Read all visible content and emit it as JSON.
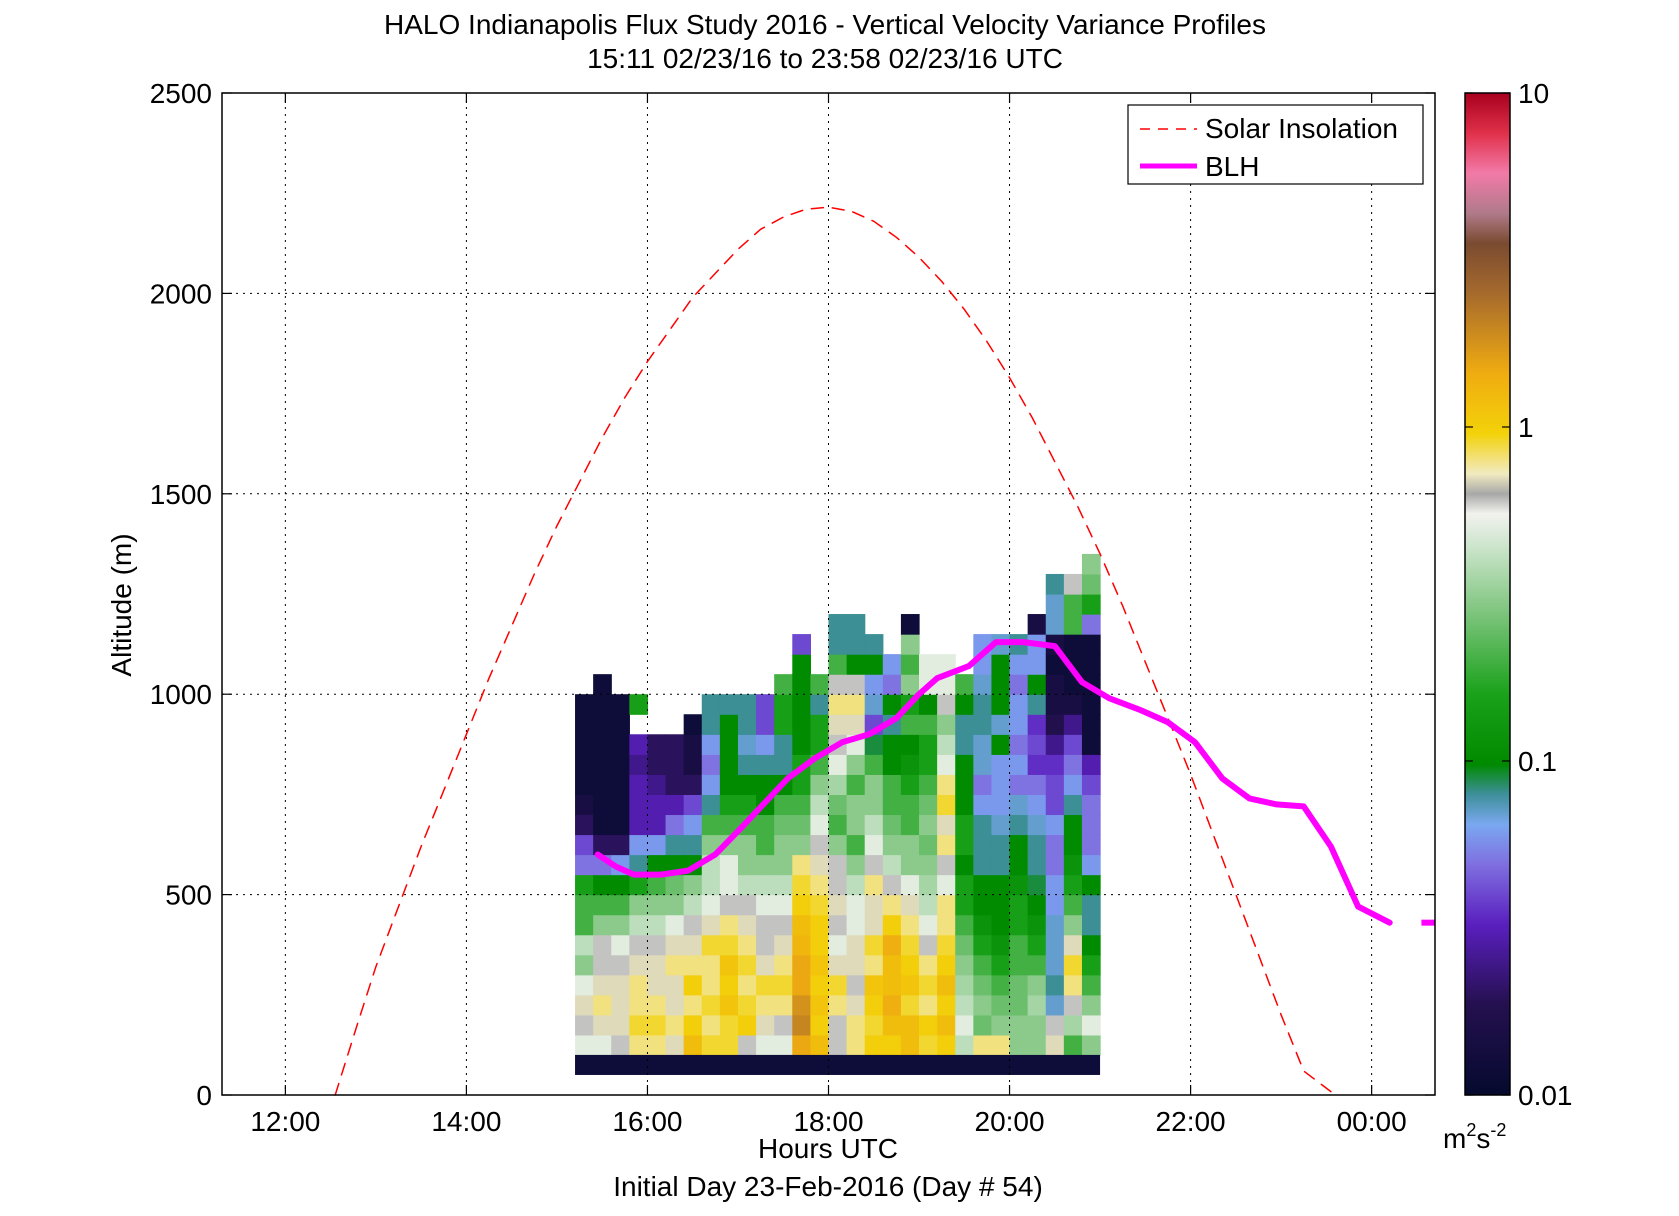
{
  "chart_data": {
    "type": "heatmap",
    "title": "HALO Indianapolis Flux Study 2016 - Vertical Velocity Variance Profiles",
    "subtitle": "15:11 02/23/16 to 23:58 02/23/16  UTC",
    "xlabel": "Hours UTC",
    "xlabel2": "Initial Day 23-Feb-2016 (Day # 54)",
    "ylabel": "Altitude (m)",
    "xlim": [
      11.3,
      24.7
    ],
    "ylim": [
      0,
      2500
    ],
    "x_ticks": [
      12,
      14,
      16,
      18,
      20,
      22,
      24
    ],
    "x_tick_labels": [
      "12:00",
      "14:00",
      "16:00",
      "18:00",
      "20:00",
      "22:00",
      "00:00"
    ],
    "y_ticks": [
      0,
      500,
      1000,
      1500,
      2000,
      2500
    ],
    "y_tick_labels": [
      "0",
      "500",
      "1000",
      "1500",
      "2000",
      "2500"
    ],
    "grid": true,
    "legend_position": "top-right",
    "colorbar": {
      "scale": "log",
      "min": 0.01,
      "max": 10,
      "ticks": [
        0.01,
        0.1,
        1,
        10
      ],
      "tick_labels": [
        "0.01",
        "0.1",
        "1",
        "10"
      ],
      "unit_base": "m",
      "unit_exp1": "2",
      "unit_mid": "s",
      "unit_exp2": "-2"
    },
    "heatmap": {
      "time_start": 15.2,
      "time_step": 0.2,
      "alt_start": 100,
      "alt_step": 50,
      "bottom_band": {
        "alt_from": 50,
        "alt_to": 100,
        "value": 0.012
      },
      "columns": [
        [
          0.5,
          0.6,
          0.7,
          0.5,
          0.3,
          0.4,
          0.2,
          0.2,
          0.15,
          0.05,
          0.04,
          0.02,
          0.015,
          0.012,
          0.012,
          0.012,
          0.012,
          0.012
        ],
        [
          0.5,
          0.7,
          0.8,
          0.7,
          0.6,
          0.6,
          0.3,
          0.2,
          0.1,
          0.05,
          0.02,
          0.012,
          0.012,
          0.012,
          0.012,
          0.012,
          0.012,
          0.012,
          0.012
        ],
        [
          0.6,
          0.7,
          0.7,
          0.7,
          0.6,
          0.5,
          0.3,
          0.2,
          0.1,
          0.06,
          0.02,
          0.012,
          0.012,
          0.012,
          0.012,
          0.012,
          0.012,
          0.012
        ],
        [
          0.8,
          0.9,
          0.8,
          0.8,
          0.7,
          0.6,
          0.4,
          0.3,
          0.15,
          0.08,
          0.06,
          0.03,
          0.03,
          0.03,
          0.025,
          0.03,
          null,
          0.15
        ],
        [
          0.8,
          0.9,
          0.8,
          0.7,
          0.7,
          0.6,
          0.4,
          0.3,
          0.2,
          0.1,
          0.06,
          0.03,
          0.03,
          0.025,
          0.02,
          0.02
        ],
        [
          0.7,
          0.8,
          0.7,
          0.7,
          0.8,
          0.7,
          0.5,
          0.3,
          0.25,
          0.1,
          0.08,
          0.05,
          0.03,
          0.02,
          0.02,
          0.02
        ],
        [
          1.2,
          1.0,
          0.8,
          1.0,
          0.8,
          0.7,
          0.6,
          0.4,
          0.3,
          0.1,
          0.08,
          0.06,
          0.04,
          0.02,
          0.015,
          0.015,
          0.012
        ],
        [
          0.9,
          0.8,
          0.9,
          0.8,
          0.8,
          0.9,
          0.7,
          0.5,
          0.4,
          0.4,
          0.3,
          0.2,
          0.08,
          0.06,
          0.05,
          0.06,
          0.08,
          0.08
        ],
        [
          0.9,
          0.9,
          1.1,
          1.0,
          1.1,
          0.9,
          0.8,
          0.6,
          0.5,
          0.5,
          0.3,
          0.2,
          0.15,
          0.1,
          0.1,
          0.1,
          0.1,
          0.08
        ],
        [
          0.6,
          1.0,
          0.9,
          0.8,
          0.9,
          0.8,
          0.7,
          0.6,
          0.4,
          0.3,
          0.3,
          0.2,
          0.15,
          0.1,
          0.08,
          0.07,
          0.08,
          0.08
        ],
        [
          0.5,
          0.7,
          0.8,
          0.9,
          0.7,
          0.6,
          0.6,
          0.5,
          0.4,
          0.3,
          0.2,
          0.2,
          0.1,
          0.1,
          0.08,
          0.06,
          0.04,
          0.04
        ],
        [
          0.5,
          0.6,
          0.8,
          0.9,
          0.8,
          0.7,
          0.6,
          0.5,
          0.4,
          0.3,
          0.3,
          0.25,
          0.2,
          0.1,
          0.08,
          0.08,
          0.15,
          0.15,
          0.2
        ],
        [
          1.5,
          2.0,
          1.8,
          1.5,
          1.5,
          1.3,
          1.2,
          1.0,
          0.9,
          0.8,
          0.3,
          0.25,
          0.2,
          0.15,
          0.15,
          0.1,
          0.1,
          0.1,
          0.1,
          0.1,
          0.04
        ],
        [
          1.2,
          1.0,
          1.1,
          1.0,
          1.1,
          1.0,
          1.0,
          0.9,
          0.8,
          0.7,
          0.6,
          0.5,
          0.4,
          0.3,
          0.2,
          0.15,
          0.15,
          0.08,
          0.2
        ],
        [
          0.6,
          0.6,
          0.8,
          0.9,
          0.7,
          0.5,
          0.6,
          0.7,
          0.6,
          0.6,
          0.3,
          0.2,
          0.25,
          0.35,
          0.5,
          0.6,
          0.7,
          0.8,
          0.6,
          0.2,
          0.08,
          0.08
        ],
        [
          0.8,
          0.8,
          0.7,
          0.6,
          0.7,
          0.7,
          0.5,
          0.5,
          0.4,
          0.3,
          0.2,
          0.3,
          0.3,
          0.2,
          0.3,
          0.5,
          0.7,
          0.8,
          0.6,
          0.1,
          0.08,
          0.08
        ],
        [
          1.0,
          0.9,
          1.0,
          1.1,
          0.8,
          0.9,
          0.7,
          0.7,
          0.8,
          0.6,
          0.5,
          0.4,
          0.3,
          0.3,
          0.2,
          0.09,
          0.04,
          0.07,
          0.06,
          0.1,
          0.08
        ],
        [
          1.0,
          1.2,
          1.4,
          1.2,
          1.2,
          1.4,
          1.0,
          0.8,
          0.6,
          0.4,
          0.3,
          0.25,
          0.2,
          0.2,
          0.1,
          0.1,
          0.08,
          0.1,
          0.05,
          0.06
        ],
        [
          1.2,
          1.2,
          0.9,
          1.1,
          1.0,
          0.9,
          0.8,
          0.7,
          0.5,
          0.3,
          0.3,
          0.2,
          0.2,
          0.15,
          0.12,
          0.1,
          0.2,
          0.15,
          0.3,
          0.2,
          0.3,
          0.012
        ],
        [
          0.9,
          1.0,
          0.8,
          0.9,
          0.8,
          0.6,
          0.5,
          0.4,
          0.35,
          0.3,
          0.25,
          0.3,
          0.25,
          0.2,
          0.15,
          0.15,
          0.2,
          0.1,
          0.5,
          0.5
        ],
        [
          1.0,
          1.2,
          1.0,
          1.2,
          1.0,
          0.9,
          0.8,
          0.8,
          0.5,
          0.6,
          0.8,
          0.7,
          0.9,
          0.8,
          0.5,
          0.4,
          0.3,
          0.6,
          0.5,
          0.5
        ],
        [
          0.4,
          0.5,
          0.4,
          0.35,
          0.3,
          0.25,
          0.2,
          0.15,
          0.15,
          0.1,
          0.15,
          0.15,
          0.1,
          0.1,
          0.1,
          0.08,
          0.08,
          0.1,
          0.2
        ],
        [
          0.8,
          0.25,
          0.3,
          0.25,
          0.2,
          0.15,
          0.12,
          0.1,
          0.1,
          0.08,
          0.08,
          0.08,
          0.06,
          0.05,
          0.07,
          0.07,
          0.08,
          0.08,
          0.07,
          0.06,
          0.06
        ],
        [
          0.8,
          0.3,
          0.25,
          0.2,
          0.15,
          0.12,
          0.1,
          0.1,
          0.1,
          0.08,
          0.08,
          0.07,
          0.06,
          0.06,
          0.06,
          0.1,
          0.07,
          0.1,
          0.1,
          0.1,
          0.07
        ],
        [
          0.3,
          0.3,
          0.25,
          0.25,
          0.2,
          0.2,
          0.15,
          0.15,
          0.12,
          0.1,
          0.1,
          0.08,
          0.07,
          0.05,
          0.06,
          0.05,
          0.06,
          0.06,
          0.05,
          0.06,
          0.08
        ],
        [
          0.3,
          0.3,
          0.35,
          0.3,
          0.2,
          0.15,
          0.12,
          0.1,
          0.09,
          0.08,
          0.08,
          0.07,
          0.06,
          0.05,
          0.035,
          0.04,
          0.035,
          0.08,
          0.1,
          0.06,
          0.06,
          0.015
        ],
        [
          0.7,
          0.6,
          0.07,
          0.08,
          0.07,
          0.07,
          0.07,
          0.06,
          0.06,
          0.05,
          0.05,
          0.06,
          0.04,
          0.04,
          0.035,
          0.025,
          0.018,
          0.015,
          0.015,
          0.012,
          0.015,
          0.07,
          0.07,
          0.08
        ],
        [
          0.2,
          0.35,
          0.6,
          0.8,
          0.9,
          0.7,
          0.3,
          0.2,
          0.15,
          0.12,
          0.1,
          0.1,
          0.08,
          0.06,
          0.05,
          0.04,
          0.025,
          0.015,
          0.012,
          0.012,
          0.012,
          0.2,
          0.2,
          0.6
        ],
        [
          0.3,
          0.5,
          0.3,
          0.2,
          0.15,
          0.1,
          0.08,
          0.08,
          0.1,
          0.06,
          0.05,
          0.05,
          0.05,
          0.04,
          0.03,
          0.012,
          0.012,
          0.012,
          0.012,
          0.012,
          0.012,
          0.05,
          0.15,
          0.25,
          0.3
        ]
      ]
    },
    "series": [
      {
        "name": "Solar Insolation",
        "style": "dashed",
        "color": "#ff0000",
        "x": [
          12.55,
          12.8,
          13.0,
          13.25,
          13.5,
          13.75,
          14.0,
          14.25,
          14.5,
          14.75,
          15.0,
          15.25,
          15.5,
          15.75,
          16.0,
          16.25,
          16.5,
          16.75,
          17.0,
          17.25,
          17.5,
          17.75,
          18.0,
          18.25,
          18.5,
          18.75,
          19.0,
          19.25,
          19.5,
          19.75,
          20.0,
          20.25,
          20.5,
          20.75,
          21.0,
          21.25,
          21.5,
          21.75,
          22.0,
          22.25,
          22.5,
          22.75,
          23.0,
          23.25,
          23.6
        ],
        "y": [
          0,
          180,
          320,
          470,
          620,
          760,
          900,
          1040,
          1170,
          1300,
          1420,
          1530,
          1640,
          1740,
          1830,
          1910,
          1990,
          2050,
          2110,
          2160,
          2190,
          2210,
          2215,
          2205,
          2180,
          2140,
          2090,
          2030,
          1960,
          1880,
          1790,
          1690,
          1580,
          1470,
          1350,
          1220,
          1080,
          940,
          800,
          650,
          500,
          350,
          200,
          60,
          0
        ]
      },
      {
        "name": "BLH",
        "style": "solid",
        "color": "#ff00ff",
        "x": [
          15.45,
          15.65,
          15.85,
          16.15,
          16.45,
          16.75,
          17.05,
          17.3,
          17.55,
          17.85,
          18.15,
          18.45,
          18.75,
          19.0,
          19.2,
          19.55,
          19.85,
          20.15,
          20.5,
          20.8,
          21.1,
          21.45,
          21.75,
          22.05,
          22.35,
          22.65,
          22.95,
          23.25,
          23.55,
          23.85,
          24.2
        ],
        "y": [
          600,
          570,
          550,
          550,
          560,
          600,
          670,
          730,
          790,
          840,
          880,
          900,
          940,
          1000,
          1040,
          1070,
          1130,
          1130,
          1120,
          1030,
          990,
          960,
          930,
          880,
          790,
          740,
          725,
          720,
          620,
          470,
          430
        ]
      }
    ],
    "blh_extra_segment": {
      "x": [
        24.55,
        24.7
      ],
      "y": [
        430,
        430
      ]
    }
  }
}
